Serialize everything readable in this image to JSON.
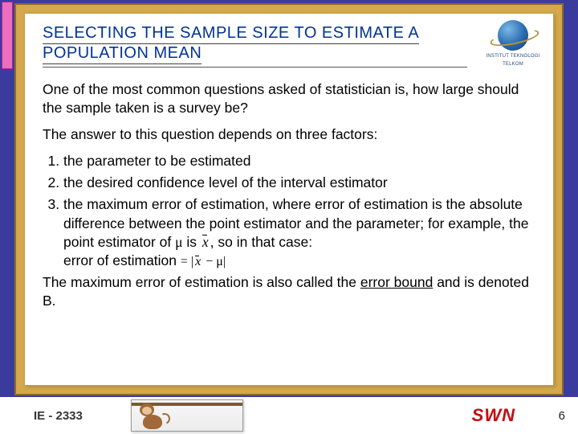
{
  "slide": {
    "title": "SELECTING THE SAMPLE SIZE TO ESTIMATE A POPULATION MEAN",
    "logo": {
      "line1": "INSTITUT TEKNOLOGI",
      "line2": "TELKOM"
    },
    "intro": "One of the most common questions asked of statistician is, how large should the sample taken is a survey be?",
    "lead": "The answer to this question depends on three factors:",
    "factors": {
      "f1": "the parameter to be estimated",
      "f2": "the desired confidence level of the interval estimator",
      "f3_a": "the maximum error of estimation, where error of estimation is the absolute difference between the point estimator and the parameter; for example, the point estimator of ",
      "f3_mu": "μ",
      "f3_b": " is ",
      "f3_c": ", so in that case:",
      "f3_label": "error of estimation",
      "f3_formula_eq": " = ",
      "f3_formula_rhs": "− μ|"
    },
    "closing_a": "The maximum error of estimation is also called the ",
    "closing_u": "error bound",
    "closing_b": " and is denoted B."
  },
  "footer": {
    "course": "IE - 2333",
    "author": "SWN",
    "page": "6"
  },
  "colors": {
    "background": "#3b3b9e",
    "frame": "#d4a84b",
    "title": "#003399",
    "author": "#c01010"
  }
}
